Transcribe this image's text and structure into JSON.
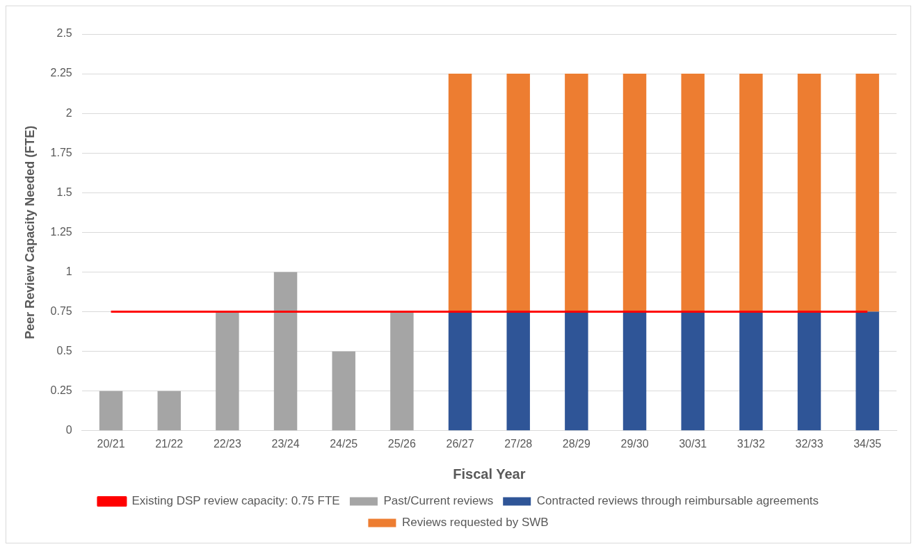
{
  "chart_data": {
    "type": "bar",
    "stacked": true,
    "xlabel": "Fiscal Year",
    "ylabel": "Peer Review Capacity Needed (FTE)",
    "categories": [
      "20/21",
      "21/22",
      "22/23",
      "23/24",
      "24/25",
      "25/26",
      "26/27",
      "27/28",
      "28/29",
      "29/30",
      "30/31",
      "31/32",
      "32/33",
      "34/35"
    ],
    "series": [
      {
        "name": "Past/Current reviews",
        "color": "#a5a5a5",
        "values": [
          0.25,
          0.25,
          0.75,
          1,
          0.5,
          0.75,
          null,
          null,
          null,
          null,
          null,
          null,
          null,
          null
        ]
      },
      {
        "name": "Contracted reviews through reimbursable agreements",
        "color": "#2f5597",
        "values": [
          null,
          null,
          null,
          null,
          null,
          null,
          0.75,
          0.75,
          0.75,
          0.75,
          0.75,
          0.75,
          0.75,
          0.75
        ]
      },
      {
        "name": "Reviews requested by SWB",
        "color": "#ed7d31",
        "values": [
          null,
          null,
          null,
          null,
          null,
          null,
          1.5,
          1.5,
          1.5,
          1.5,
          1.5,
          1.5,
          1.5,
          1.5
        ]
      },
      {
        "name": "Existing DSP review capacity: 0.75 FTE",
        "color": "#ff0000",
        "type": "line",
        "marker": "none",
        "values": [
          0.75,
          0.75,
          0.75,
          0.75,
          0.75,
          0.75,
          0.75,
          0.75,
          0.75,
          0.75,
          0.75,
          0.75,
          0.75,
          0.75
        ]
      }
    ],
    "ylim": [
      0,
      2.5
    ],
    "yticks": [
      0,
      0.25,
      0.5,
      0.75,
      1,
      1.25,
      1.5,
      1.75,
      2,
      2.25,
      2.5
    ],
    "grid": "y",
    "legend": "bottom"
  }
}
